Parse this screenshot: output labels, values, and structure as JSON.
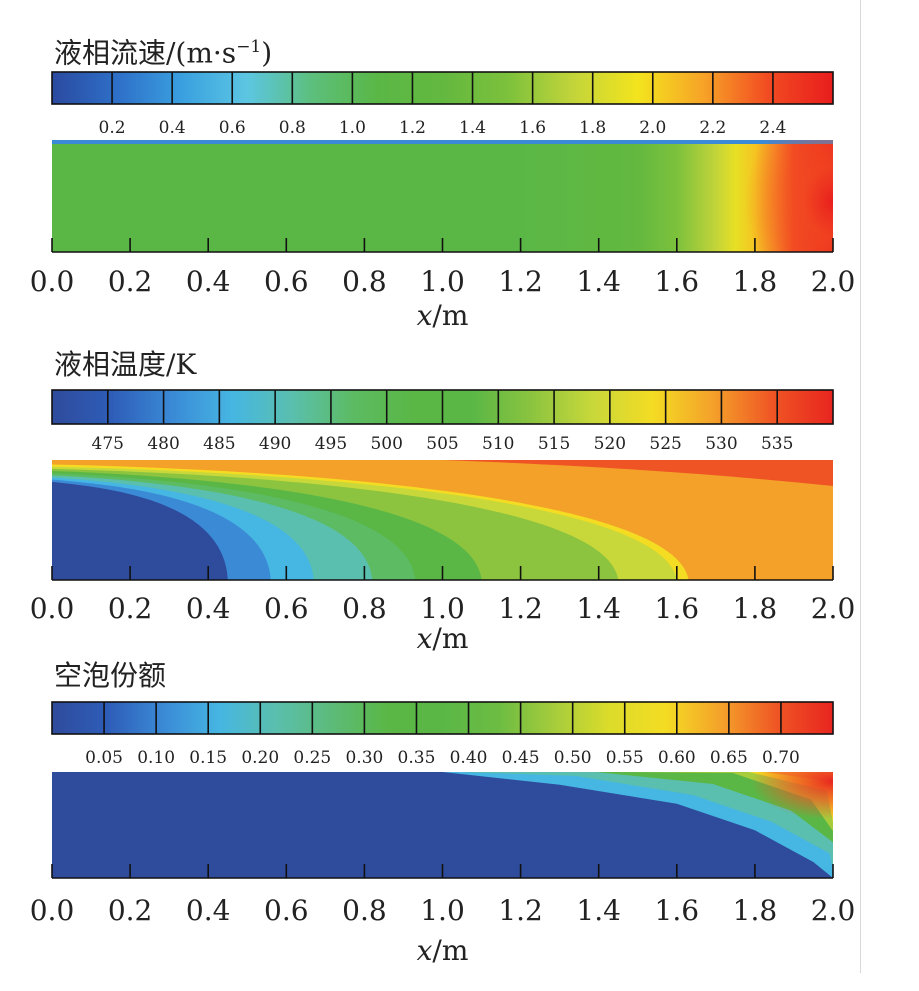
{
  "panels": [
    {
      "title": "液相流速/(m·s",
      "title_sup": "−1",
      "title_close": ")",
      "colorbar_ticks": [
        "0.2",
        "0.4",
        "0.6",
        "0.8",
        "1.0",
        "1.2",
        "1.4",
        "1.6",
        "1.8",
        "2.0",
        "2.2",
        "2.4"
      ],
      "colorbar_colors": [
        "#2b4aa0",
        "#2e6fc8",
        "#3aa0e0",
        "#5cc6e2",
        "#5cbf7c",
        "#5ab746",
        "#63b83f",
        "#7cc13c",
        "#c2d43a",
        "#f3e41d",
        "#f7a427",
        "#f24b22",
        "#e81d1d"
      ],
      "xticks": [
        "0.0",
        "0.2",
        "0.4",
        "0.6",
        "0.8",
        "1.0",
        "1.2",
        "1.4",
        "1.6",
        "1.8",
        "2.0"
      ],
      "xlabel_italic": "x",
      "xlabel_rest": "/m"
    },
    {
      "title": "液相温度/K",
      "colorbar_ticks": [
        "475",
        "480",
        "485",
        "490",
        "495",
        "500",
        "505",
        "510",
        "515",
        "520",
        "525",
        "530",
        "535"
      ],
      "colorbar_colors": [
        "#2f4b9c",
        "#2e5db8",
        "#3a8ad6",
        "#46b6e2",
        "#5abfae",
        "#5cbb63",
        "#5ab746",
        "#5ab746",
        "#8cc43f",
        "#c8d83a",
        "#f4dc23",
        "#f4a12a",
        "#ef5524",
        "#e8251f"
      ],
      "xticks": [
        "0.0",
        "0.2",
        "0.4",
        "0.6",
        "0.8",
        "1.0",
        "1.2",
        "1.4",
        "1.6",
        "1.8",
        "2.0"
      ],
      "xlabel_italic": "x",
      "xlabel_rest": "/m"
    },
    {
      "title": "空泡份额",
      "colorbar_ticks": [
        "0.05",
        "0.10",
        "0.15",
        "0.20",
        "0.25",
        "0.30",
        "0.35",
        "0.40",
        "0.45",
        "0.50",
        "0.55",
        "0.60",
        "0.65",
        "0.70"
      ],
      "colorbar_colors": [
        "#2f4b9c",
        "#2e5db8",
        "#3a8ad6",
        "#46b6e2",
        "#5abfae",
        "#5cbb7a",
        "#5ab746",
        "#5ab746",
        "#6cbc42",
        "#a6cc3c",
        "#dcdc2a",
        "#f4dc23",
        "#f4a12a",
        "#ef5524",
        "#e8251f"
      ],
      "xticks": [
        "0.0",
        "0.2",
        "0.4",
        "0.6",
        "0.8",
        "1.0",
        "1.2",
        "1.4",
        "1.6",
        "1.8",
        "2.0"
      ],
      "xlabel_italic": "x",
      "xlabel_rest": "/m"
    }
  ],
  "chart_data": [
    {
      "type": "heatmap",
      "title": "液相流速/(m·s−1)",
      "xlabel": "x/m",
      "xlim": [
        0.0,
        2.0
      ],
      "colorbar_range": [
        0.1,
        2.5
      ],
      "field_profile": {
        "x": [
          0.0,
          1.2,
          1.5,
          1.7,
          1.8,
          1.9,
          2.0
        ],
        "v": [
          1.1,
          1.1,
          1.3,
          1.7,
          2.0,
          2.3,
          2.45
        ]
      }
    },
    {
      "type": "heatmap",
      "title": "液相温度/K",
      "xlabel": "x/m",
      "xlim": [
        0.0,
        2.0
      ],
      "colorbar_range": [
        472.5,
        537.5
      ],
      "isoline_x_at_bottom": {
        "480": 0.56,
        "485": 0.67,
        "490": 0.82,
        "495": 0.93,
        "500": 1.1,
        "505": 1.45,
        "510": 1.6,
        "515": 1.63,
        "520": 1.76
      }
    },
    {
      "type": "heatmap",
      "title": "空泡份额",
      "xlabel": "x/m",
      "xlim": [
        0.0,
        2.0
      ],
      "colorbar_range": [
        0.025,
        0.725
      ],
      "vapor_front": {
        "x": [
          1.0,
          1.3,
          1.6,
          1.8,
          1.95,
          2.0
        ],
        "depth_fraction": [
          0.0,
          0.12,
          0.3,
          0.55,
          0.85,
          1.0
        ]
      },
      "max_value_near_outlet": 0.7
    }
  ]
}
